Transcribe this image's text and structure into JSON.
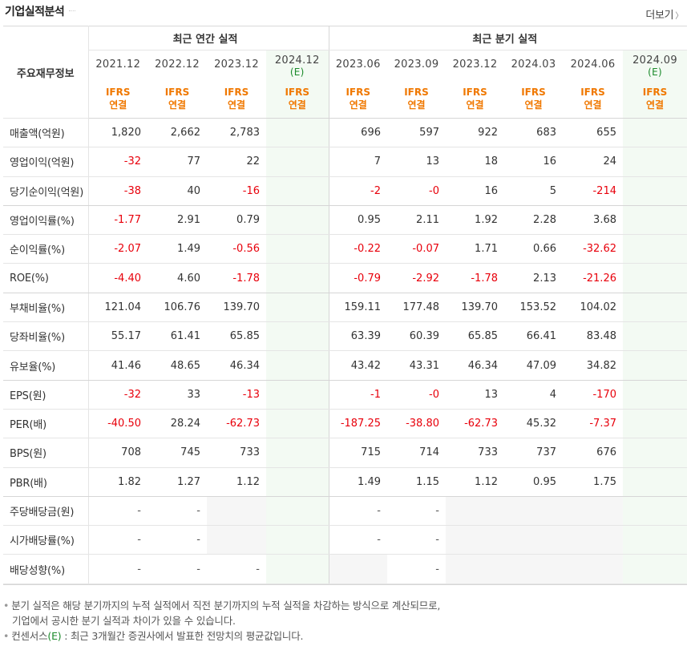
{
  "title": "기업실적분석",
  "more_label": "더보기",
  "more_icon": "chevron-right-icon",
  "colors": {
    "accent_orange": "#f07800",
    "negative_red": "#e8000b",
    "estimate_green": "#1a8a2a",
    "estimate_bg": "#f3faf3"
  },
  "table": {
    "corner_label": "주요재무정보",
    "annual_group": "최근 연간 실적",
    "quarter_group": "최근 분기 실적",
    "periods": [
      {
        "label": "2021.12",
        "est": ""
      },
      {
        "label": "2022.12",
        "est": ""
      },
      {
        "label": "2023.12",
        "est": ""
      },
      {
        "label": "2024.12",
        "est": "(E)"
      },
      {
        "label": "2023.06",
        "est": ""
      },
      {
        "label": "2023.09",
        "est": ""
      },
      {
        "label": "2023.12",
        "est": ""
      },
      {
        "label": "2024.03",
        "est": ""
      },
      {
        "label": "2024.06",
        "est": ""
      },
      {
        "label": "2024.09",
        "est": "(E)"
      }
    ],
    "basis_line1": "IFRS",
    "basis_line2": "연결",
    "rows": [
      {
        "label": "매출액(억원)",
        "values": [
          "1,820",
          "2,662",
          "2,783",
          "",
          "696",
          "597",
          "922",
          "683",
          "655",
          ""
        ]
      },
      {
        "label": "영업이익(억원)",
        "values": [
          "-32",
          "77",
          "22",
          "",
          "7",
          "13",
          "18",
          "16",
          "24",
          ""
        ]
      },
      {
        "label": "당기순이익(억원)",
        "values": [
          "-38",
          "40",
          "-16",
          "",
          "-2",
          "-0",
          "16",
          "5",
          "-214",
          ""
        ]
      },
      {
        "label": "영업이익률(%)",
        "values": [
          "-1.77",
          "2.91",
          "0.79",
          "",
          "0.95",
          "2.11",
          "1.92",
          "2.28",
          "3.68",
          ""
        ]
      },
      {
        "label": "순이익률(%)",
        "values": [
          "-2.07",
          "1.49",
          "-0.56",
          "",
          "-0.22",
          "-0.07",
          "1.71",
          "0.66",
          "-32.62",
          ""
        ]
      },
      {
        "label": "ROE(%)",
        "values": [
          "-4.40",
          "4.60",
          "-1.78",
          "",
          "-0.79",
          "-2.92",
          "-1.78",
          "2.13",
          "-21.26",
          ""
        ]
      },
      {
        "label": "부채비율(%)",
        "values": [
          "121.04",
          "106.76",
          "139.70",
          "",
          "159.11",
          "177.48",
          "139.70",
          "153.52",
          "104.02",
          ""
        ]
      },
      {
        "label": "당좌비율(%)",
        "values": [
          "55.17",
          "61.41",
          "65.85",
          "",
          "63.39",
          "60.39",
          "65.85",
          "66.41",
          "83.48",
          ""
        ]
      },
      {
        "label": "유보율(%)",
        "values": [
          "41.46",
          "48.65",
          "46.34",
          "",
          "43.42",
          "43.31",
          "46.34",
          "47.09",
          "34.82",
          ""
        ]
      },
      {
        "label": "EPS(원)",
        "values": [
          "-32",
          "33",
          "-13",
          "",
          "-1",
          "-0",
          "13",
          "4",
          "-170",
          ""
        ]
      },
      {
        "label": "PER(배)",
        "values": [
          "-40.50",
          "28.24",
          "-62.73",
          "",
          "-187.25",
          "-38.80",
          "-62.73",
          "45.32",
          "-7.37",
          ""
        ]
      },
      {
        "label": "BPS(원)",
        "values": [
          "708",
          "745",
          "733",
          "",
          "715",
          "714",
          "733",
          "737",
          "676",
          ""
        ]
      },
      {
        "label": "PBR(배)",
        "values": [
          "1.82",
          "1.27",
          "1.12",
          "",
          "1.49",
          "1.15",
          "1.12",
          "0.95",
          "1.75",
          ""
        ]
      },
      {
        "label": "주당배당금(원)",
        "values": [
          "-",
          "-",
          "",
          "",
          "-",
          "-",
          "",
          "",
          "",
          ""
        ]
      },
      {
        "label": "시가배당률(%)",
        "values": [
          "-",
          "-",
          "",
          "",
          "-",
          "-",
          "",
          "",
          "",
          ""
        ]
      },
      {
        "label": "배당성향(%)",
        "values": [
          "-",
          "-",
          "-",
          "",
          "",
          "-",
          "",
          "",
          "",
          ""
        ]
      }
    ]
  },
  "notes": {
    "line1": "분기 실적은 해당 분기까지의 누적 실적에서 직전 분기까지의 누적 실적을 차감하는 방식으로 계산되므로,",
    "line2": "기업에서 공시한 분기 실적과 차이가 있을 수 있습니다.",
    "line3_prefix": "컨센서스",
    "line3_est": "(E)",
    "line3_suffix": " : 최근 3개월간 증권사에서 발표한 전망치의 평균값입니다."
  }
}
